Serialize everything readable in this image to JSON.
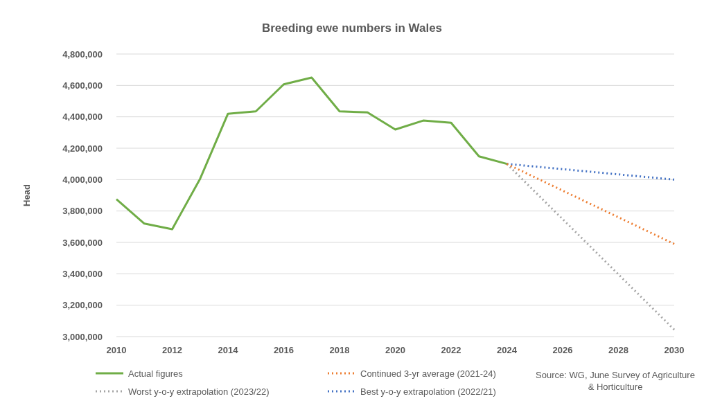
{
  "chart_data": {
    "type": "line",
    "title": "Breeding ewe numbers in Wales",
    "ylabel": "Head",
    "xlim": [
      2010,
      2030
    ],
    "xticks": [
      2010,
      2012,
      2014,
      2016,
      2018,
      2020,
      2022,
      2024,
      2026,
      2028,
      2030
    ],
    "ylim": [
      3000000,
      4800000
    ],
    "yticks": [
      {
        "value": 3000000,
        "label": "3,000,000"
      },
      {
        "value": 3200000,
        "label": "3,200,000"
      },
      {
        "value": 3400000,
        "label": "3,400,000"
      },
      {
        "value": 3600000,
        "label": "3,600,000"
      },
      {
        "value": 3800000,
        "label": "3,800,000"
      },
      {
        "value": 4000000,
        "label": "4,000,000"
      },
      {
        "value": 4200000,
        "label": "4,200,000"
      },
      {
        "value": 4400000,
        "label": "4,400,000"
      },
      {
        "value": 4600000,
        "label": "4,600,000"
      },
      {
        "value": 4800000,
        "label": "4,800,000"
      }
    ],
    "grid": "y",
    "legend": "bottom",
    "marker": "none",
    "series": [
      {
        "name": "Actual figures",
        "color": "#70ad47",
        "line_style": "solid",
        "x": [
          2010,
          2011,
          2012,
          2013,
          2014,
          2015,
          2016,
          2017,
          2018,
          2019,
          2020,
          2021,
          2022,
          2023,
          2024
        ],
        "values": [
          3875000,
          3720000,
          3684000,
          4005000,
          4420000,
          4435000,
          4607000,
          4650000,
          4435000,
          4428000,
          4319000,
          4376000,
          4362000,
          4148000,
          4100000
        ]
      },
      {
        "name": "Continued 3-yr average (2021-24)",
        "color": "#ed7d31",
        "line_style": "dotted",
        "x": [
          2024,
          2030
        ],
        "values": [
          4100000,
          3590000
        ]
      },
      {
        "name": "Worst y-o-y extrapolation (2023/22)",
        "color": "#a5a5a5",
        "line_style": "dotted",
        "x": [
          2024,
          2030
        ],
        "values": [
          4100000,
          3044000
        ]
      },
      {
        "name": "Best y-o-y extrapolation (2022/21)",
        "color": "#4472c4",
        "line_style": "dotted",
        "x": [
          2024,
          2030
        ],
        "values": [
          4100000,
          4000000
        ]
      }
    ],
    "annotations": [
      "Source: WG, June Survey of Agriculture & Horticulture"
    ]
  }
}
